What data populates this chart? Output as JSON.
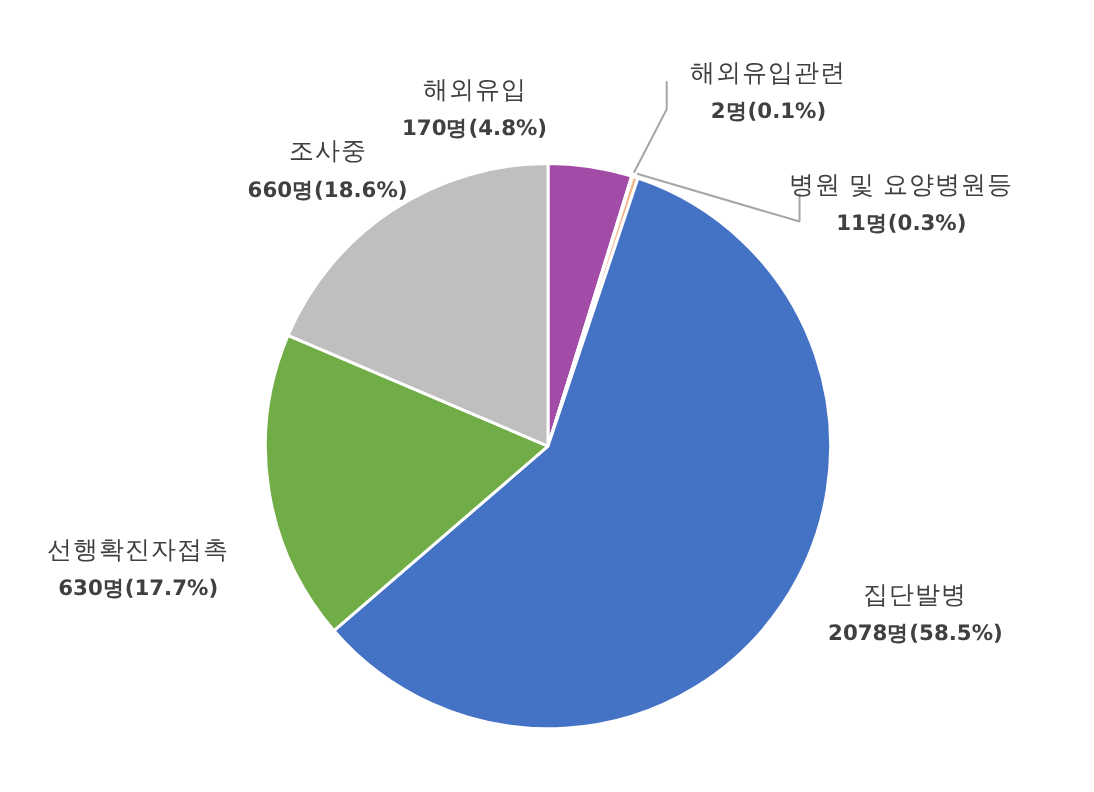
{
  "chart_data": {
    "type": "pie",
    "categories": [
      "해외유입",
      "해외유입관련",
      "병원 및 요양병원등",
      "집단발병",
      "선행확진자접촉",
      "조사중"
    ],
    "values": [
      170,
      2,
      11,
      2078,
      630,
      660
    ],
    "colors": [
      "#a24ca8",
      "#ffc000",
      "#f4b183",
      "#4472c4",
      "#70ad47",
      "#bfbfbf"
    ],
    "value_labels": [
      "170명(4.8%)",
      "2명(0.1%)",
      "11명(0.3%)",
      "2078명(58.5%)",
      "630명(17.7%)",
      "660명(18.6%)"
    ]
  }
}
